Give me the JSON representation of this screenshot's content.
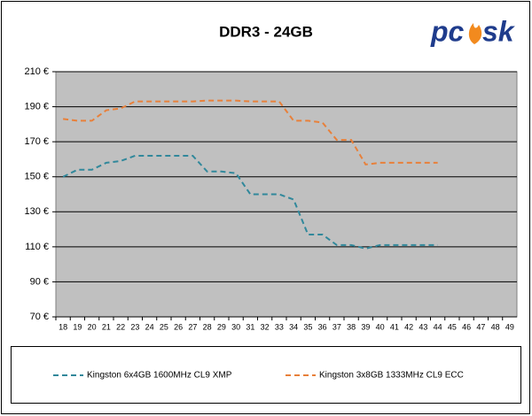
{
  "chart_data": {
    "type": "line",
    "title": "DDR3 - 24GB",
    "logo": {
      "left": "pc",
      "right": "sk"
    },
    "categories": [
      "18",
      "19",
      "20",
      "21",
      "22",
      "23",
      "24",
      "25",
      "26",
      "27",
      "28",
      "29",
      "30",
      "31",
      "32",
      "33",
      "34",
      "35",
      "36",
      "37",
      "38",
      "39",
      "40",
      "41",
      "42",
      "43",
      "44",
      "45",
      "46",
      "47",
      "48",
      "49"
    ],
    "series": [
      {
        "name": "Kingston 6x4GB 1600MHz CL9 XMP",
        "color": "#31889b",
        "values": [
          150,
          154,
          154,
          158,
          159,
          162,
          162,
          162,
          162,
          162,
          153,
          153,
          152,
          140,
          140,
          140,
          137,
          117,
          117,
          111,
          111,
          109,
          111,
          111,
          111,
          111,
          111,
          null,
          null,
          null,
          null,
          null
        ]
      },
      {
        "name": "Kingston 3x8GB 1333MHz CL9 ECC",
        "color": "#e8803a",
        "values": [
          183,
          182,
          182,
          188,
          189,
          193,
          193,
          193,
          193,
          193,
          193.5,
          193.5,
          193.5,
          193,
          193,
          193,
          182,
          182,
          181,
          171,
          171,
          157,
          158,
          158,
          158,
          158,
          158,
          null,
          null,
          null,
          null,
          null
        ]
      }
    ],
    "ylim": [
      70,
      210
    ],
    "yticks": [
      {
        "value": 70,
        "label": "70 €"
      },
      {
        "value": 90,
        "label": "90 €"
      },
      {
        "value": 110,
        "label": "110 €"
      },
      {
        "value": 130,
        "label": "130 €"
      },
      {
        "value": 150,
        "label": "150 €"
      },
      {
        "value": 170,
        "label": "170 €"
      },
      {
        "value": 190,
        "label": "190 €"
      },
      {
        "value": 210,
        "label": "210 €"
      }
    ],
    "grid": true,
    "legend": "bottom"
  }
}
